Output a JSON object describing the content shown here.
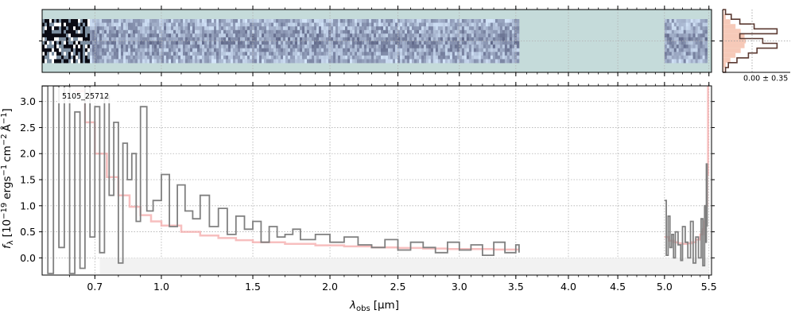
{
  "chart_data": [
    {
      "panel": "2d-spectrum",
      "type": "heatmap",
      "colormap": "bone_r",
      "background_color": "#c5dbda",
      "data_segments_um": [
        [
          0.5,
          3.53
        ],
        [
          5.0,
          5.48
        ]
      ],
      "noisy_columns_um": [
        0.5,
        0.8
      ],
      "grid": true
    },
    {
      "panel": "pixel-histogram",
      "type": "histogram",
      "annotation": "0.00 ± 0.35",
      "line_color": "#5b3a32",
      "fill_color": "#f6c9b8",
      "bins": [
        -1.0,
        -0.85,
        -0.7,
        -0.55,
        -0.4,
        -0.25,
        -0.1,
        0.05,
        0.2,
        0.35,
        0.5,
        0.65,
        0.8,
        0.95
      ],
      "counts": [
        0.05,
        0.1,
        0.25,
        0.45,
        0.6,
        0.95,
        0.7,
        0.3,
        0.95,
        0.55,
        0.3,
        0.15,
        0.05
      ],
      "model_counts": [
        0.05,
        0.12,
        0.3,
        0.5,
        0.7,
        0.85,
        0.9,
        0.85,
        0.7,
        0.5,
        0.3,
        0.12,
        0.05
      ]
    },
    {
      "panel": "1d-spectrum",
      "type": "line",
      "label": "5105_25712",
      "xlabel": "λ",
      "xlabel_sub": "obs",
      "xlabel_unit": "[μm]",
      "ylabel": "f",
      "ylabel_sub": "λ",
      "ylabel_unit": "[10",
      "ylabel_exp": "−19",
      "ylabel_unit2": "ergs",
      "ylabel_exp2": "−1",
      "ylabel_unit3": "cm",
      "ylabel_exp3": "−2",
      "ylabel_unit4": "Å",
      "ylabel_exp4": "−1",
      "ylabel_close": "]",
      "xscale": "sqrt",
      "xlim": [
        0.5,
        5.53
      ],
      "ylim": [
        -0.33,
        3.3
      ],
      "x_ticks": [
        0.7,
        1.0,
        1.5,
        2.0,
        2.5,
        3.0,
        3.5,
        4.0,
        4.5,
        5.0,
        5.5
      ],
      "x_tick_labels": [
        "0.7",
        "1.0",
        "1.5",
        "2.0",
        "2.5",
        "3.0",
        "3.5",
        "4.0",
        "4.5",
        "5.0",
        "5.5"
      ],
      "y_ticks": [
        0.0,
        0.5,
        1.0,
        1.5,
        2.0,
        2.5,
        3.0
      ],
      "y_tick_labels": [
        "0.0",
        "0.5",
        "1.0",
        "1.5",
        "2.0",
        "2.5",
        "3.0"
      ],
      "grid": true,
      "series": [
        {
          "role": "flux",
          "color": "#808080",
          "segments": [
            {
              "x": [
                0.5,
                0.52,
                0.54,
                0.56,
                0.58,
                0.6,
                0.62,
                0.64,
                0.66,
                0.68,
                0.7,
                0.72,
                0.74,
                0.76,
                0.78,
                0.8,
                0.82,
                0.84,
                0.86,
                0.88,
                0.9,
                0.93,
                0.96,
                1.0,
                1.04,
                1.08,
                1.12,
                1.16,
                1.2,
                1.25,
                1.3,
                1.35,
                1.4,
                1.45,
                1.5,
                1.55,
                1.6,
                1.65,
                1.7,
                1.75,
                1.8,
                1.9,
                2.0,
                2.1,
                2.2,
                2.3,
                2.4,
                2.5,
                2.6,
                2.7,
                2.8,
                2.9,
                3.0,
                3.1,
                3.2,
                3.3,
                3.4,
                3.5,
                3.53
              ],
              "y": [
                3.3,
                -0.3,
                3.3,
                0.2,
                3.3,
                -0.3,
                2.8,
                -0.2,
                3.3,
                0.4,
                2.9,
                0.1,
                3.1,
                1.2,
                2.6,
                -0.1,
                2.2,
                1.5,
                2.0,
                0.7,
                2.9,
                0.9,
                1.1,
                1.6,
                0.6,
                1.4,
                0.9,
                0.75,
                1.2,
                0.6,
                0.95,
                0.45,
                0.8,
                0.55,
                0.7,
                0.3,
                0.6,
                0.4,
                0.45,
                0.55,
                0.35,
                0.45,
                0.3,
                0.4,
                0.25,
                0.2,
                0.35,
                0.15,
                0.3,
                0.2,
                0.1,
                0.3,
                0.15,
                0.25,
                0.05,
                0.3,
                0.1,
                0.25,
                0.1
              ]
            },
            {
              "x": [
                5.0,
                5.02,
                5.04,
                5.06,
                5.08,
                5.1,
                5.12,
                5.15,
                5.18,
                5.2,
                5.23,
                5.26,
                5.29,
                5.32,
                5.35,
                5.38,
                5.41,
                5.43,
                5.45,
                5.46,
                5.47,
                5.48
              ],
              "y": [
                1.1,
                0.05,
                0.8,
                0.2,
                0.45,
                0.0,
                0.5,
                0.25,
                -0.05,
                0.6,
                0.3,
                0.0,
                0.7,
                -0.1,
                0.4,
                0.0,
                0.75,
                -0.15,
                1.0,
                0.3,
                1.8,
                0.6
              ]
            }
          ]
        },
        {
          "role": "uncertainty",
          "color": "#f4a9a9",
          "segments": [
            {
              "x": [
                0.62,
                0.66,
                0.7,
                0.75,
                0.8,
                0.85,
                0.9,
                0.95,
                1.0,
                1.1,
                1.2,
                1.3,
                1.4,
                1.5,
                1.7,
                1.9,
                2.1,
                2.3,
                2.5,
                2.7,
                2.9,
                3.1,
                3.3,
                3.53
              ],
              "y": [
                3.2,
                2.6,
                2.0,
                1.55,
                1.2,
                0.98,
                0.82,
                0.7,
                0.62,
                0.5,
                0.43,
                0.38,
                0.34,
                0.3,
                0.27,
                0.24,
                0.22,
                0.2,
                0.19,
                0.18,
                0.17,
                0.17,
                0.16,
                0.16
              ]
            },
            {
              "x": [
                5.0,
                5.05,
                5.1,
                5.15,
                5.2,
                5.25,
                5.3,
                5.35,
                5.4,
                5.43,
                5.45,
                5.47,
                5.48,
                5.49
              ],
              "y": [
                0.4,
                0.33,
                0.3,
                0.28,
                0.27,
                0.28,
                0.3,
                0.35,
                0.45,
                0.55,
                0.7,
                1.0,
                1.6,
                3.3
              ]
            }
          ]
        }
      ]
    }
  ]
}
